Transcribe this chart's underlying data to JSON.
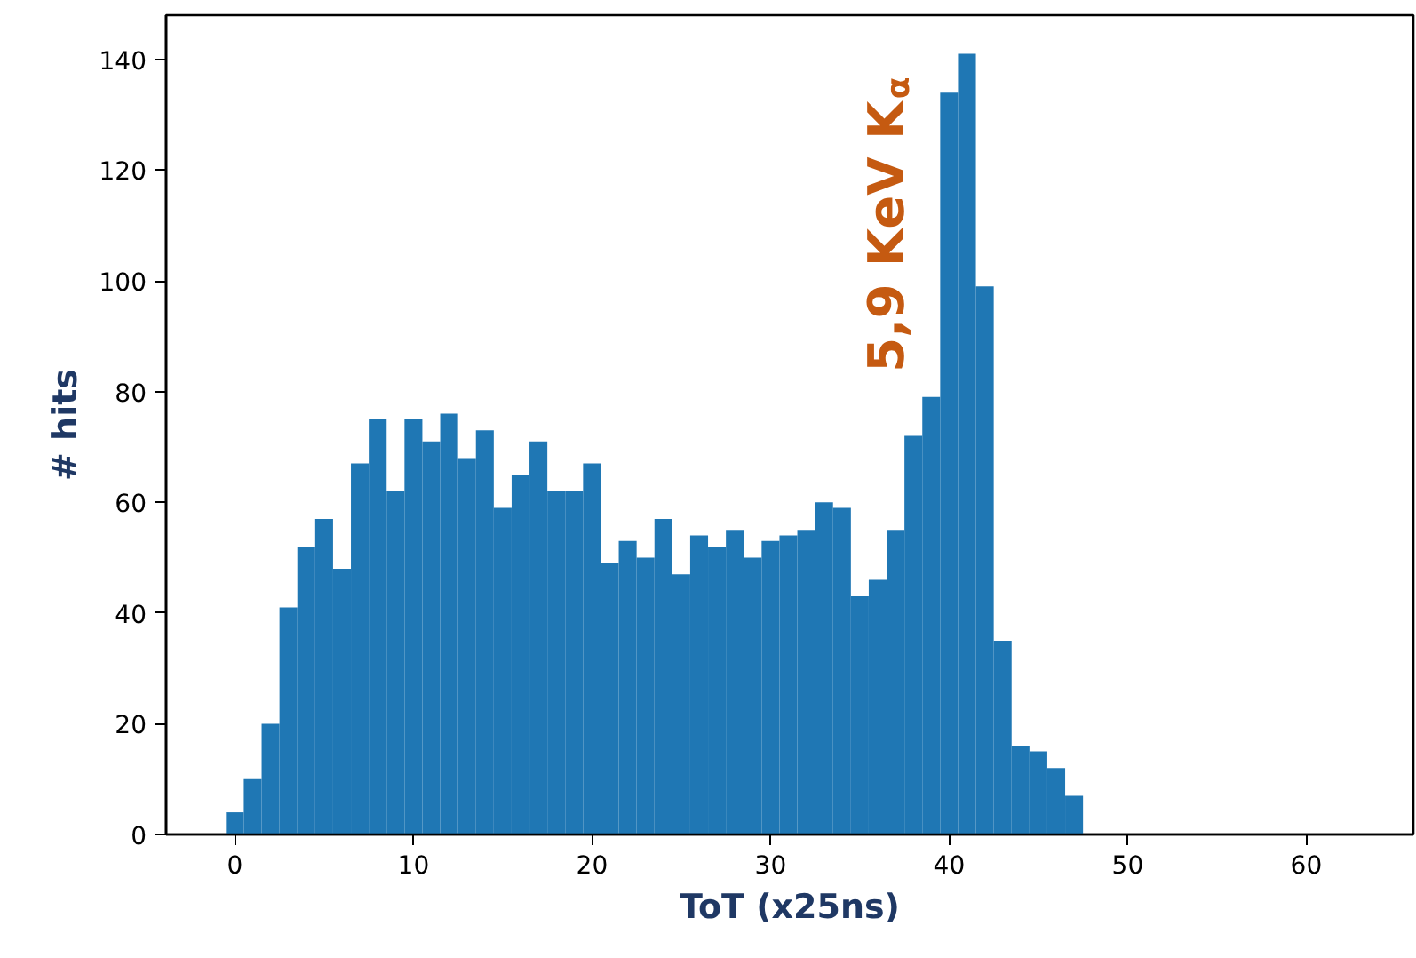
{
  "chart_data": {
    "type": "histogram",
    "xlabel": "ToT (x25ns)",
    "ylabel": "# hits",
    "color": "#1f77b4",
    "annotations": [
      "5,9 KeV K$_{α}$"
    ],
    "bins": [
      -0.5,
      0.5,
      1.5,
      2.5,
      3.5,
      4.5,
      5.5,
      6.5,
      7.5,
      8.5,
      9.5,
      10.5,
      11.5,
      12.5,
      13.5,
      14.5,
      15.5,
      16.5,
      17.5,
      18.5,
      19.5,
      20.5,
      21.5,
      22.5,
      23.5,
      24.5,
      25.5,
      26.5,
      27.5,
      28.5,
      29.5,
      30.5,
      31.5,
      32.5,
      33.5,
      34.5,
      35.5,
      36.5,
      37.5,
      38.5,
      39.5,
      40.5,
      41.5,
      42.5,
      43.5,
      44.5,
      45.5,
      46.5,
      47.5
    ],
    "values": [
      4,
      10,
      20,
      41,
      52,
      57,
      48,
      67,
      75,
      62,
      75,
      71,
      76,
      68,
      73,
      59,
      65,
      71,
      62,
      62,
      67,
      49,
      53,
      50,
      57,
      47,
      54,
      52,
      55,
      50,
      53,
      54,
      55,
      60,
      59,
      43,
      46,
      55,
      72,
      79,
      134,
      141,
      99,
      35,
      16,
      15,
      12,
      7
    ],
    "xlim": [
      -3.85,
      66
    ],
    "ylim": [
      0,
      148
    ],
    "xticks": [
      0,
      10,
      20,
      30,
      40,
      50,
      60
    ],
    "yticks": [
      0,
      20,
      40,
      60,
      80,
      100,
      120,
      140
    ],
    "grid": false
  }
}
